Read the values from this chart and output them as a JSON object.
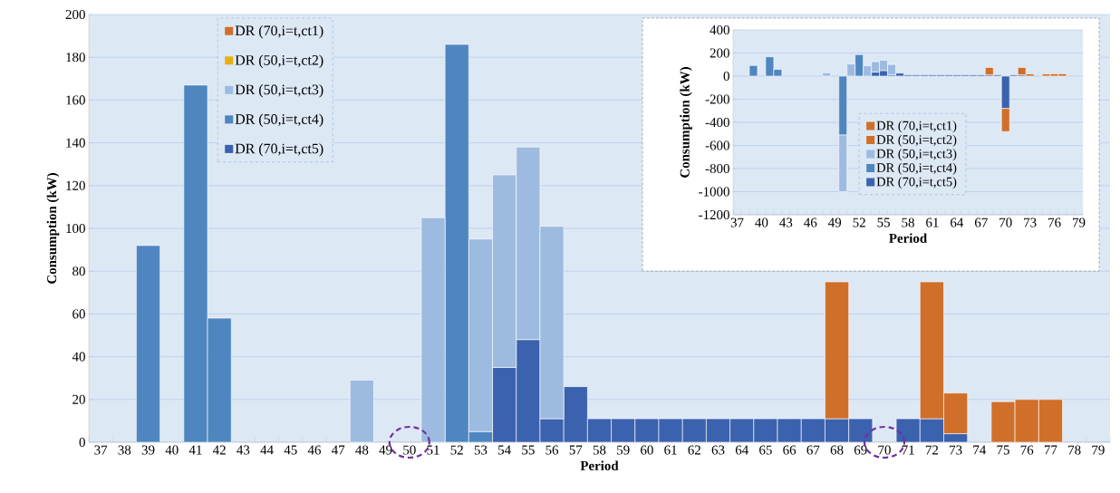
{
  "chart_data": [
    {
      "type": "bar",
      "stacked": true,
      "xlabel": "Period",
      "ylabel": "Consumption (kW)",
      "categories": [
        "37",
        "38",
        "39",
        "40",
        "41",
        "42",
        "43",
        "44",
        "45",
        "46",
        "47",
        "48",
        "49",
        "50",
        "51",
        "52",
        "53",
        "54",
        "55",
        "56",
        "57",
        "58",
        "59",
        "60",
        "61",
        "62",
        "63",
        "64",
        "65",
        "66",
        "67",
        "68",
        "69",
        "70",
        "71",
        "72",
        "73",
        "74",
        "75",
        "76",
        "77",
        "78",
        "79"
      ],
      "series": [
        {
          "name": "DR (70,i=t,ct5)",
          "color": "#3b62ae",
          "values": [
            null,
            null,
            null,
            null,
            null,
            null,
            null,
            null,
            null,
            null,
            null,
            null,
            null,
            null,
            null,
            null,
            null,
            35,
            48,
            11,
            26,
            11,
            11,
            11,
            11,
            11,
            11,
            11,
            11,
            11,
            11,
            11,
            11,
            null,
            11,
            11,
            4,
            null,
            null,
            null,
            null,
            null,
            null
          ]
        },
        {
          "name": "DR (50,i=t,ct4)",
          "color": "#4f86c0",
          "values": [
            null,
            null,
            92,
            null,
            167,
            58,
            null,
            null,
            null,
            null,
            null,
            null,
            null,
            null,
            null,
            186,
            5,
            null,
            null,
            null,
            null,
            null,
            null,
            null,
            null,
            null,
            null,
            null,
            null,
            null,
            null,
            null,
            null,
            null,
            null,
            null,
            null,
            null,
            null,
            null,
            null,
            null,
            null
          ]
        },
        {
          "name": "DR (50,i=t,ct3)",
          "color": "#9dbbe0",
          "values": [
            null,
            null,
            null,
            null,
            null,
            null,
            null,
            null,
            null,
            null,
            null,
            29,
            null,
            null,
            105,
            null,
            90,
            90,
            90,
            90,
            null,
            null,
            null,
            null,
            null,
            null,
            null,
            null,
            null,
            null,
            null,
            null,
            null,
            null,
            null,
            null,
            null,
            null,
            null,
            null,
            null,
            null,
            null
          ]
        },
        {
          "name": "DR (50,i=t,ct2)",
          "color": "#e6b010",
          "values": [
            null,
            null,
            null,
            null,
            null,
            null,
            null,
            null,
            null,
            null,
            null,
            null,
            null,
            null,
            null,
            null,
            null,
            null,
            null,
            null,
            null,
            null,
            null,
            null,
            null,
            null,
            null,
            null,
            null,
            null,
            null,
            null,
            null,
            null,
            null,
            null,
            null,
            null,
            null,
            null,
            null,
            null,
            null
          ]
        },
        {
          "name": "DR (70,i=t,ct1)",
          "color": "#d06f2a",
          "values": [
            null,
            null,
            null,
            null,
            null,
            null,
            null,
            null,
            null,
            null,
            null,
            null,
            null,
            null,
            null,
            null,
            null,
            null,
            null,
            null,
            null,
            null,
            null,
            null,
            null,
            null,
            null,
            null,
            null,
            null,
            null,
            64,
            null,
            null,
            null,
            64,
            19,
            null,
            19,
            20,
            20,
            null,
            null
          ]
        }
      ],
      "ylim": [
        0,
        200
      ],
      "yticks": [
        0,
        20,
        40,
        60,
        80,
        100,
        120,
        140,
        160,
        180,
        200
      ],
      "grid": "y",
      "legend": "top left"
    },
    {
      "type": "bar",
      "stacked": true,
      "xlabel": "Period",
      "ylabel": "Consumption (kW)",
      "categories": [
        "37",
        null,
        null,
        "40",
        null,
        null,
        "43",
        null,
        null,
        "46",
        null,
        null,
        "49",
        null,
        null,
        "52",
        null,
        null,
        "55",
        null,
        null,
        "58",
        null,
        null,
        "61",
        null,
        null,
        "64",
        null,
        null,
        "67",
        null,
        null,
        "70",
        null,
        null,
        "73",
        null,
        null,
        "76",
        null,
        null,
        "79"
      ],
      "series": [
        {
          "name": "DR (70,i=t,ct5)",
          "color": "#3b62ae",
          "values": [
            null,
            null,
            null,
            null,
            null,
            null,
            null,
            null,
            null,
            null,
            null,
            null,
            null,
            null,
            null,
            null,
            null,
            35,
            48,
            11,
            26,
            11,
            11,
            11,
            11,
            11,
            11,
            11,
            11,
            11,
            11,
            11,
            11,
            -280,
            11,
            11,
            null,
            null,
            null,
            null,
            null,
            null,
            null
          ]
        },
        {
          "name": "DR (50,i=t,ct4)",
          "color": "#4f86c0",
          "values": [
            null,
            null,
            92,
            null,
            167,
            58,
            null,
            null,
            null,
            null,
            null,
            null,
            null,
            -510,
            null,
            186,
            null,
            null,
            null,
            null,
            null,
            null,
            null,
            null,
            null,
            null,
            null,
            null,
            null,
            null,
            null,
            null,
            null,
            null,
            null,
            null,
            null,
            null,
            null,
            null,
            null,
            null,
            null
          ]
        },
        {
          "name": "DR (50,i=t,ct3)",
          "color": "#9dbbe0",
          "values": [
            null,
            null,
            null,
            null,
            null,
            null,
            null,
            null,
            null,
            null,
            null,
            29,
            null,
            -490,
            105,
            null,
            90,
            90,
            90,
            90,
            null,
            null,
            null,
            null,
            null,
            null,
            null,
            null,
            null,
            null,
            null,
            null,
            null,
            null,
            null,
            null,
            null,
            null,
            null,
            null,
            null,
            null,
            null
          ]
        },
        {
          "name": "DR (50,i=t,ct2)",
          "color": "#d06f2a",
          "values": [
            null,
            null,
            null,
            null,
            null,
            null,
            null,
            null,
            null,
            null,
            null,
            null,
            null,
            null,
            null,
            null,
            null,
            null,
            null,
            null,
            null,
            null,
            null,
            null,
            null,
            null,
            null,
            null,
            null,
            null,
            null,
            null,
            null,
            null,
            null,
            null,
            null,
            null,
            null,
            null,
            null,
            null,
            null
          ]
        },
        {
          "name": "DR (70,i=t,ct1)",
          "color": "#d06f2a",
          "values": [
            null,
            null,
            null,
            null,
            null,
            null,
            null,
            null,
            null,
            null,
            null,
            null,
            null,
            null,
            null,
            null,
            null,
            null,
            null,
            null,
            null,
            null,
            null,
            null,
            null,
            null,
            null,
            null,
            null,
            null,
            null,
            64,
            null,
            -200,
            null,
            64,
            19,
            null,
            19,
            20,
            20,
            null,
            null
          ]
        }
      ],
      "ylim": [
        -1200,
        400
      ],
      "yticks": [
        -1200,
        -1000,
        -800,
        -600,
        -400,
        -200,
        0,
        200,
        400
      ],
      "grid": "y",
      "legend": "bottom"
    }
  ]
}
